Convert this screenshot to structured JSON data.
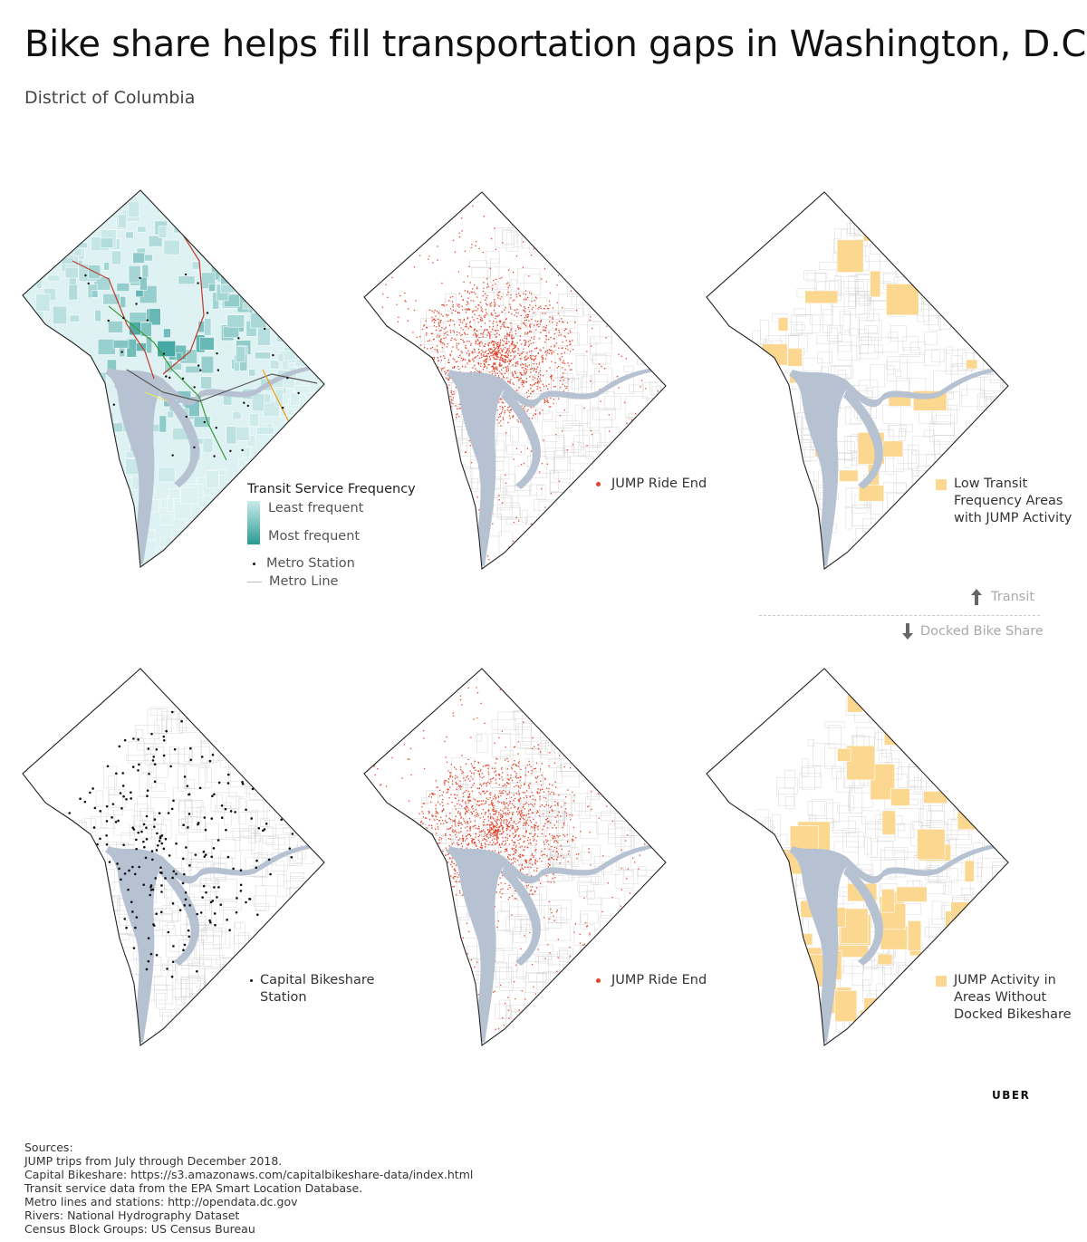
{
  "title": "Bike share helps fill transportation gaps in Washington, D.C.",
  "subtitle": "District of Columbia",
  "colors": {
    "transit_light": "#dff2f3",
    "transit_dark": "#2a9a96",
    "jump_red": "#e2432b",
    "highlight_yellow": "#fbd78f",
    "river": "#b6c2d2",
    "metro_red": "#c0392b",
    "metro_green": "#3a9a3a",
    "metro_orange": "#f39c12",
    "metro_yellow": "#e8e85a",
    "metro_silver": "#555555"
  },
  "panels": {
    "transit": {
      "legend_title": "Transit Service Frequency",
      "least": "Least frequent",
      "most": "Most frequent",
      "station": "Metro Station",
      "line": "Metro Line"
    },
    "jump_top": {
      "legend": "JUMP Ride End"
    },
    "low_transit": {
      "legend_1": "Low Transit",
      "legend_2": "Frequency Areas",
      "legend_3": "with JUMP Activity"
    },
    "bikeshare": {
      "legend_1": "Capital Bikeshare",
      "legend_2": "Station"
    },
    "jump_bottom": {
      "legend": "JUMP Ride End"
    },
    "no_dock": {
      "legend_1": "JUMP Activity in",
      "legend_2": "Areas Without",
      "legend_3": "Docked Bikeshare"
    }
  },
  "divider": {
    "up_label": "Transit",
    "down_label": "Docked Bike Share"
  },
  "brand": "UBER",
  "sources": [
    "Sources:",
    "JUMP trips from July through December 2018.",
    "Capital Bikeshare: https://s3.amazonaws.com/capitalbikeshare-data/index.html",
    "Transit service data from the EPA Smart Location Database.",
    "Metro lines and stations: http://opendata.dc.gov",
    "Rivers: National Hydrography Dataset",
    "Census Block Groups: US Census Bureau"
  ]
}
